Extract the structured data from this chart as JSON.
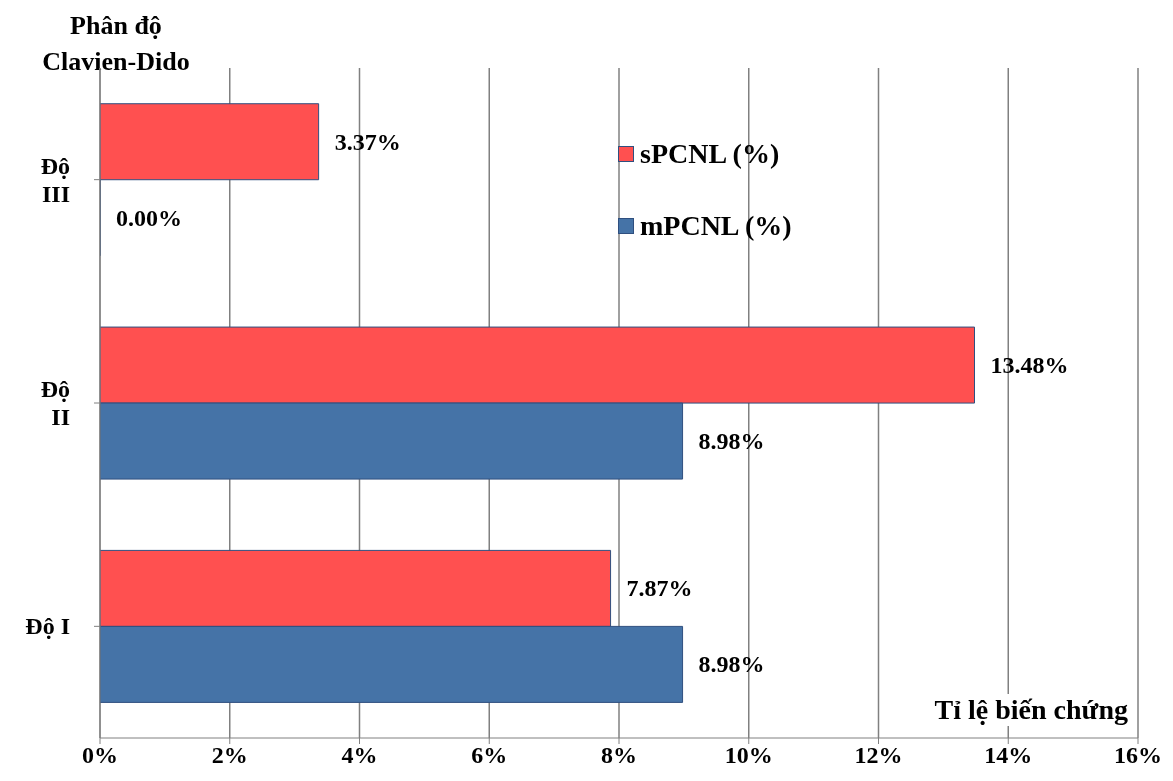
{
  "chart_data": {
    "type": "bar",
    "orientation": "horizontal",
    "ylabel": "Phân độ Clavien-Dido",
    "xlabel": "Tỉ lệ biến chứng",
    "categories": [
      "Độ III",
      "Độ II",
      "Độ I"
    ],
    "series": [
      {
        "name": "sPCNL (%)",
        "color": "#ff5050",
        "values": [
          3.37,
          13.48,
          7.87
        ],
        "value_labels": [
          "3.37%",
          "13.48%",
          "7.87%"
        ]
      },
      {
        "name": "mPCNL (%)",
        "color": "#4573a7",
        "values": [
          0,
          8.98,
          8.98
        ],
        "value_labels": [
          "0.00%",
          "8.98%",
          "8.98%"
        ]
      }
    ],
    "xlim": [
      0,
      16
    ],
    "xticks": [
      {
        "value": 0,
        "label": "0%"
      },
      {
        "value": 2,
        "label": "2%"
      },
      {
        "value": 4,
        "label": "4%"
      },
      {
        "value": 6,
        "label": "6%"
      },
      {
        "value": 8,
        "label": "8%"
      },
      {
        "value": 10,
        "label": "10%"
      },
      {
        "value": 12,
        "label": "12%"
      },
      {
        "value": 14,
        "label": "14%"
      },
      {
        "value": 16,
        "label": "16%"
      }
    ],
    "grid": "x",
    "legend": "top"
  }
}
